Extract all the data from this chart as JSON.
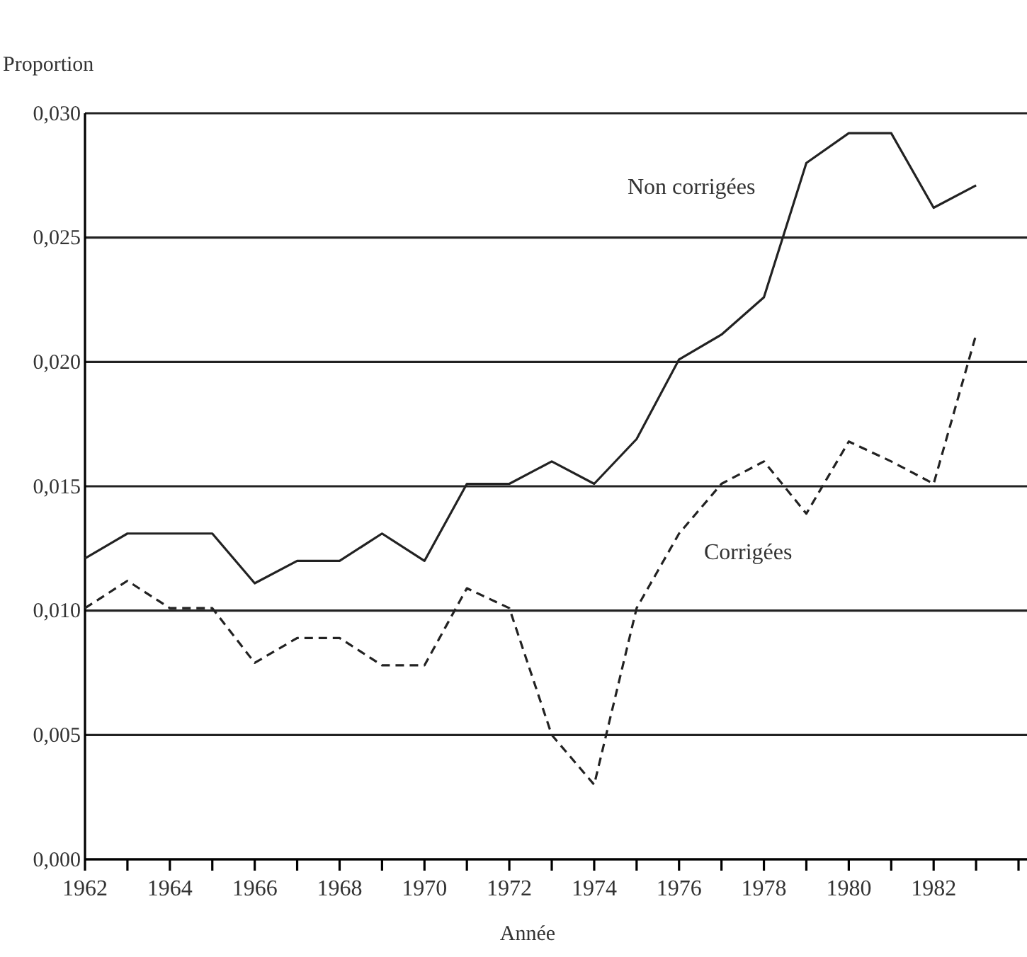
{
  "chart_data": {
    "type": "line",
    "ylabel": "Proportion",
    "xlabel": "Année",
    "x": [
      1962,
      1963,
      1964,
      1965,
      1966,
      1967,
      1968,
      1969,
      1970,
      1971,
      1972,
      1973,
      1974,
      1975,
      1976,
      1977,
      1978,
      1979,
      1980,
      1981,
      1982,
      1983
    ],
    "series": [
      {
        "name": "Non corrigées",
        "color": "#222222",
        "line_style": "solid",
        "values": [
          0.0121,
          0.0131,
          0.0131,
          0.0131,
          0.0111,
          0.012,
          0.012,
          0.0131,
          0.012,
          0.0151,
          0.0151,
          0.016,
          0.0151,
          0.0169,
          0.0201,
          0.0211,
          0.0226,
          0.028,
          0.0292,
          0.0292,
          0.0262,
          0.0271
        ]
      },
      {
        "name": "Corrigées",
        "color": "#222222",
        "line_style": "dashed",
        "values": [
          0.0101,
          0.0112,
          0.0101,
          0.0101,
          0.0079,
          0.0089,
          0.0089,
          0.0078,
          0.0078,
          0.0109,
          0.0101,
          0.005,
          0.003,
          0.0101,
          0.0131,
          0.0151,
          0.016,
          0.0139,
          0.0168,
          0.016,
          0.0151,
          0.0211
        ]
      }
    ],
    "xlim": [
      1962,
      1984.2
    ],
    "xticks": [
      1962,
      {
        "value": 1963,
        "label": null
      },
      1964,
      {
        "value": 1965,
        "label": null
      },
      1966,
      {
        "value": 1967,
        "label": null
      },
      1968,
      {
        "value": 1969,
        "label": null
      },
      1970,
      {
        "value": 1971,
        "label": null
      },
      1972,
      {
        "value": 1973,
        "label": null
      },
      1974,
      {
        "value": 1975,
        "label": null
      },
      1976,
      {
        "value": 1977,
        "label": null
      },
      1978,
      {
        "value": 1979,
        "label": null
      },
      1980,
      {
        "value": 1981,
        "label": null
      },
      1982,
      {
        "value": 1983,
        "label": null
      },
      {
        "value": 1984,
        "label": null
      }
    ],
    "ylim": [
      0,
      0.03
    ],
    "yticks": [
      {
        "value": 0,
        "label": "0,000"
      },
      {
        "value": 0.005,
        "label": "0,005"
      },
      {
        "value": 0.01,
        "label": "0,010"
      },
      {
        "value": 0.015,
        "label": "0,015"
      },
      {
        "value": 0.02,
        "label": "0,020"
      },
      {
        "value": 0.025,
        "label": "0,025"
      },
      {
        "value": 0.03,
        "label": "0,030"
      }
    ],
    "grid": "y",
    "marker": "none"
  }
}
